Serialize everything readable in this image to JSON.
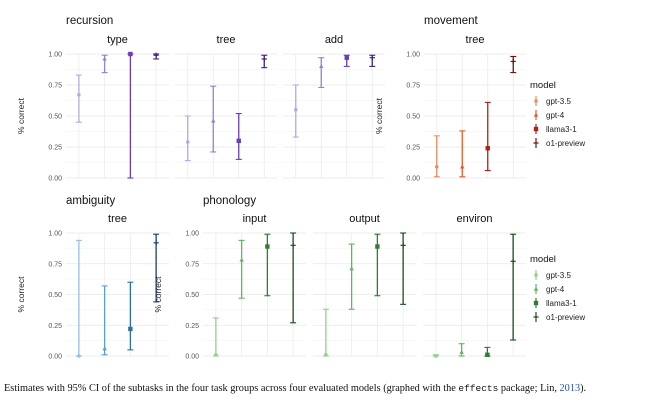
{
  "caption": {
    "before": "Estimates with 95% CI of the subtasks in the four task groups across four evaluated models (graphed with the ",
    "package": "effects",
    "middle": " package; Lin, ",
    "year": "2013",
    "after": ")."
  },
  "legends": [
    {
      "title": "model",
      "entries": [
        {
          "label": "gpt-3.5",
          "color": "#f08a5d",
          "shape": "circle"
        },
        {
          "label": "gpt-4",
          "color": "#e65a2a",
          "shape": "triangle"
        },
        {
          "label": "llama3-1",
          "color": "#b0201a",
          "shape": "square"
        },
        {
          "label": "o1-preview",
          "color": "#6b1410",
          "shape": "plus"
        }
      ]
    },
    {
      "title": "model",
      "entries": [
        {
          "label": "gpt-3.5",
          "color": "#8fd18a",
          "shape": "circle"
        },
        {
          "label": "gpt-4",
          "color": "#5cb85c",
          "shape": "triangle"
        },
        {
          "label": "llama3-1",
          "color": "#2e7d32",
          "shape": "square"
        },
        {
          "label": "o1-preview",
          "color": "#1b4d1e",
          "shape": "plus"
        }
      ]
    }
  ],
  "chart_data": [
    {
      "type": "scatter",
      "group": "recursion",
      "ylabel": "% correct",
      "ylim": [
        0,
        1
      ],
      "yticks": [
        "0.00",
        "0.25",
        "0.50",
        "0.75",
        "1.00"
      ],
      "facets": [
        {
          "title": "type",
          "points": [
            {
              "model": "gpt-3.5",
              "y": 0.67,
              "lo": 0.45,
              "hi": 0.83,
              "color": "#b3abe0"
            },
            {
              "model": "gpt-4",
              "y": 0.96,
              "lo": 0.85,
              "hi": 0.99,
              "color": "#8e84d0"
            },
            {
              "model": "llama3-1",
              "y": 1.0,
              "lo": 0.0,
              "hi": 1.0,
              "color": "#6a3db8"
            },
            {
              "model": "o1-preview",
              "y": 0.99,
              "lo": 0.96,
              "hi": 1.0,
              "color": "#3f2080"
            }
          ]
        },
        {
          "title": "tree",
          "points": [
            {
              "model": "gpt-3.5",
              "y": 0.29,
              "lo": 0.14,
              "hi": 0.5,
              "color": "#b3abe0"
            },
            {
              "model": "gpt-4",
              "y": 0.46,
              "lo": 0.21,
              "hi": 0.74,
              "color": "#8e84d0"
            },
            {
              "model": "llama3-1",
              "y": 0.3,
              "lo": 0.15,
              "hi": 0.52,
              "color": "#6a3db8"
            },
            {
              "model": "o1-preview",
              "y": 0.96,
              "lo": 0.89,
              "hi": 0.99,
              "color": "#3f2080"
            }
          ]
        },
        {
          "title": "add",
          "points": [
            {
              "model": "gpt-3.5",
              "y": 0.55,
              "lo": 0.33,
              "hi": 0.75,
              "color": "#b3abe0"
            },
            {
              "model": "gpt-4",
              "y": 0.9,
              "lo": 0.73,
              "hi": 0.97,
              "color": "#8e84d0"
            },
            {
              "model": "llama3-1",
              "y": 0.97,
              "lo": 0.9,
              "hi": 0.99,
              "color": "#6a3db8"
            },
            {
              "model": "o1-preview",
              "y": 0.97,
              "lo": 0.9,
              "hi": 0.99,
              "color": "#3f2080"
            }
          ]
        }
      ]
    },
    {
      "type": "scatter",
      "group": "movement",
      "ylabel": "% correct",
      "ylim": [
        0,
        1
      ],
      "yticks": [
        "0.00",
        "0.25",
        "0.50",
        "0.75",
        "1.00"
      ],
      "facets": [
        {
          "title": "tree",
          "points": [
            {
              "model": "gpt-3.5",
              "y": 0.09,
              "lo": 0.01,
              "hi": 0.34,
              "color": "#f08a5d"
            },
            {
              "model": "gpt-4",
              "y": 0.09,
              "lo": 0.01,
              "hi": 0.38,
              "color": "#e65a2a"
            },
            {
              "model": "llama3-1",
              "y": 0.24,
              "lo": 0.06,
              "hi": 0.61,
              "color": "#b0201a"
            },
            {
              "model": "o1-preview",
              "y": 0.94,
              "lo": 0.85,
              "hi": 0.98,
              "color": "#6b1410"
            }
          ]
        }
      ]
    },
    {
      "type": "scatter",
      "group": "ambiguity",
      "ylabel": "% correct",
      "ylim": [
        0,
        1
      ],
      "yticks": [
        "0.00",
        "0.25",
        "0.50",
        "0.75",
        "1.00"
      ],
      "facets": [
        {
          "title": "tree",
          "points": [
            {
              "model": "gpt-3.5",
              "y": 0.0,
              "lo": 0.0,
              "hi": 0.94,
              "color": "#8fc3e8"
            },
            {
              "model": "gpt-4",
              "y": 0.06,
              "lo": 0.01,
              "hi": 0.57,
              "color": "#5a9fd4"
            },
            {
              "model": "llama3-1",
              "y": 0.22,
              "lo": 0.05,
              "hi": 0.6,
              "color": "#2f6fa8"
            },
            {
              "model": "o1-preview",
              "y": 0.92,
              "lo": 0.44,
              "hi": 0.99,
              "color": "#1b3f6b"
            }
          ]
        }
      ]
    },
    {
      "type": "scatter",
      "group": "phonology",
      "ylabel": "% correct",
      "ylim": [
        0,
        1
      ],
      "yticks": [
        "0.00",
        "0.25",
        "0.50",
        "0.75",
        "1.00"
      ],
      "facets": [
        {
          "title": "input",
          "points": [
            {
              "model": "gpt-3.5",
              "y": 0.01,
              "lo": 0.0,
              "hi": 0.31,
              "color": "#8fd18a"
            },
            {
              "model": "gpt-4",
              "y": 0.78,
              "lo": 0.47,
              "hi": 0.94,
              "color": "#5cb85c"
            },
            {
              "model": "llama3-1",
              "y": 0.89,
              "lo": 0.49,
              "hi": 0.99,
              "color": "#2e7d32"
            },
            {
              "model": "o1-preview",
              "y": 0.9,
              "lo": 0.27,
              "hi": 1.0,
              "color": "#1b4d1e"
            }
          ]
        },
        {
          "title": "output",
          "points": [
            {
              "model": "gpt-3.5",
              "y": 0.01,
              "lo": 0.0,
              "hi": 0.38,
              "color": "#8fd18a"
            },
            {
              "model": "gpt-4",
              "y": 0.71,
              "lo": 0.38,
              "hi": 0.91,
              "color": "#5cb85c"
            },
            {
              "model": "llama3-1",
              "y": 0.89,
              "lo": 0.49,
              "hi": 0.99,
              "color": "#2e7d32"
            },
            {
              "model": "o1-preview",
              "y": 0.9,
              "lo": 0.42,
              "hi": 1.0,
              "color": "#1b4d1e"
            }
          ]
        },
        {
          "title": "environ",
          "points": [
            {
              "model": "gpt-3.5",
              "y": 0.0,
              "lo": 0.0,
              "hi": 0.01,
              "color": "#8fd18a"
            },
            {
              "model": "gpt-4",
              "y": 0.03,
              "lo": 0.0,
              "hi": 0.1,
              "color": "#5cb85c"
            },
            {
              "model": "llama3-1",
              "y": 0.01,
              "lo": 0.0,
              "hi": 0.07,
              "color": "#2e7d32"
            },
            {
              "model": "o1-preview",
              "y": 0.77,
              "lo": 0.13,
              "hi": 0.99,
              "color": "#1b4d1e"
            }
          ]
        }
      ]
    }
  ]
}
